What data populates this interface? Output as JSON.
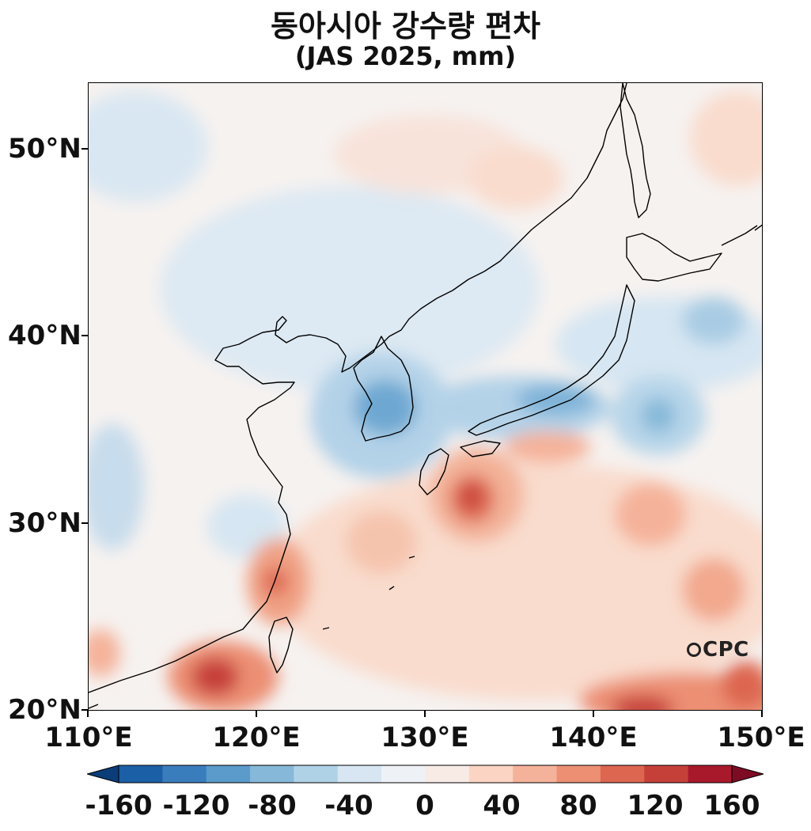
{
  "title": {
    "main": "동아시아 강수량 편차",
    "sub": "(JAS 2025, mm)"
  },
  "map": {
    "lat_labels": [
      "50°N",
      "40°N",
      "30°N",
      "20°N"
    ],
    "lon_labels": [
      "110°E",
      "120°E",
      "130°E",
      "140°E",
      "150°E"
    ],
    "extent": {
      "lon": [
        110,
        150
      ],
      "lat": [
        20,
        53.5
      ]
    },
    "logo": "CPC"
  },
  "colorbar": {
    "ticks": [
      "-160",
      "-120",
      "-80",
      "-40",
      "0",
      "40",
      "80",
      "120",
      "160"
    ],
    "colors": [
      "#0b3d78",
      "#1b5fa6",
      "#3a7dbd",
      "#5a9bcb",
      "#86b9d9",
      "#b0d2e7",
      "#d7e6f2",
      "#eef2f6",
      "#f8ebe6",
      "#fbd4c3",
      "#f5b29a",
      "#ec8f73",
      "#dd6650",
      "#c6403a",
      "#a8192b",
      "#7c0b23"
    ]
  }
}
